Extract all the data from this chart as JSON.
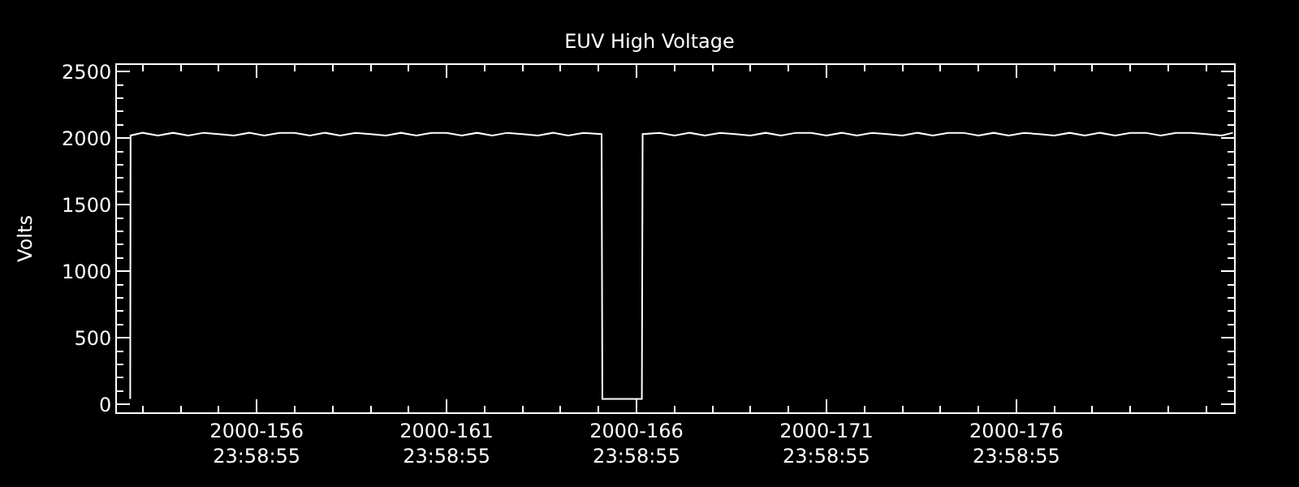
{
  "chart_data": {
    "type": "line",
    "title": "EUV High Voltage",
    "ylabel": "Volts",
    "x": [
      "2000-06-01T16:05",
      "2000-06-01T16:19",
      "2000-06-02T00:00",
      "2000-06-02T09:36",
      "2000-06-02T19:12",
      "2000-06-03T04:48",
      "2000-06-03T14:24",
      "2000-06-04T00:00",
      "2000-06-04T09:36",
      "2000-06-04T19:12",
      "2000-06-05T04:48",
      "2000-06-05T14:24",
      "2000-06-06T00:00",
      "2000-06-06T09:36",
      "2000-06-06T19:12",
      "2000-06-07T04:48",
      "2000-06-07T14:24",
      "2000-06-08T00:00",
      "2000-06-08T09:36",
      "2000-06-08T19:12",
      "2000-06-09T04:48",
      "2000-06-09T14:24",
      "2000-06-10T00:00",
      "2000-06-10T09:36",
      "2000-06-10T19:12",
      "2000-06-11T04:48",
      "2000-06-11T14:24",
      "2000-06-12T00:00",
      "2000-06-12T09:36",
      "2000-06-12T19:12",
      "2000-06-13T04:48",
      "2000-06-13T14:24",
      "2000-06-14T01:55",
      "2000-06-14T02:24",
      "2000-06-15T03:22",
      "2000-06-15T03:50",
      "2000-06-15T14:24",
      "2000-06-16T00:00",
      "2000-06-16T09:36",
      "2000-06-16T19:12",
      "2000-06-17T04:48",
      "2000-06-17T14:24",
      "2000-06-18T00:00",
      "2000-06-18T09:36",
      "2000-06-18T19:12",
      "2000-06-19T04:48",
      "2000-06-19T14:24",
      "2000-06-20T00:00",
      "2000-06-20T09:36",
      "2000-06-20T19:12",
      "2000-06-21T04:48",
      "2000-06-21T14:24",
      "2000-06-22T00:00",
      "2000-06-22T09:36",
      "2000-06-22T19:12",
      "2000-06-23T04:48",
      "2000-06-23T14:24",
      "2000-06-24T00:00",
      "2000-06-24T09:36",
      "2000-06-24T19:12",
      "2000-06-25T04:48",
      "2000-06-25T14:24",
      "2000-06-26T00:00",
      "2000-06-26T09:36",
      "2000-06-26T19:12",
      "2000-06-27T04:48",
      "2000-06-27T14:24",
      "2000-06-28T00:00",
      "2000-06-28T09:36",
      "2000-06-28T19:12",
      "2000-06-29T04:48",
      "2000-06-29T14:24",
      "2000-06-30T00:00",
      "2000-06-30T09:36",
      "2000-06-30T16:48"
    ],
    "series": [
      {
        "color": "#ffffff",
        "values": [
          40,
          2020,
          2040,
          2020,
          2040,
          2020,
          2040,
          2030,
          2020,
          2040,
          2020,
          2040,
          2040,
          2020,
          2040,
          2020,
          2040,
          2030,
          2020,
          2040,
          2020,
          2040,
          2040,
          2020,
          2040,
          2020,
          2040,
          2030,
          2020,
          2040,
          2020,
          2040,
          2030,
          40,
          40,
          2030,
          2040,
          2020,
          2040,
          2020,
          2040,
          2030,
          2020,
          2040,
          2020,
          2040,
          2040,
          2020,
          2040,
          2020,
          2040,
          2030,
          2020,
          2040,
          2020,
          2040,
          2040,
          2020,
          2040,
          2020,
          2040,
          2030,
          2020,
          2040,
          2020,
          2040,
          2020,
          2040,
          2040,
          2020,
          2040,
          2040,
          2030,
          2020,
          2040
        ]
      }
    ],
    "xlim": [
      "2000-06-01T07:41",
      "2000-06-30T17:31"
    ],
    "xticks": [
      {
        "value": "2000-06-04T23:59",
        "label": "2000-156\n23:58:55"
      },
      {
        "value": "2000-06-09T23:59",
        "label": "2000-161\n23:58:55"
      },
      {
        "value": "2000-06-14T23:59",
        "label": "2000-166\n23:58:55"
      },
      {
        "value": "2000-06-19T23:59",
        "label": "2000-171\n23:58:55"
      },
      {
        "value": "2000-06-24T23:59",
        "label": "2000-176\n23:58:55"
      }
    ],
    "ylim": [
      -60,
      2550
    ],
    "yticks": [
      0,
      500,
      1000,
      1500,
      2000,
      2500
    ],
    "grid": false,
    "marker": "none",
    "line_style": "solid"
  }
}
